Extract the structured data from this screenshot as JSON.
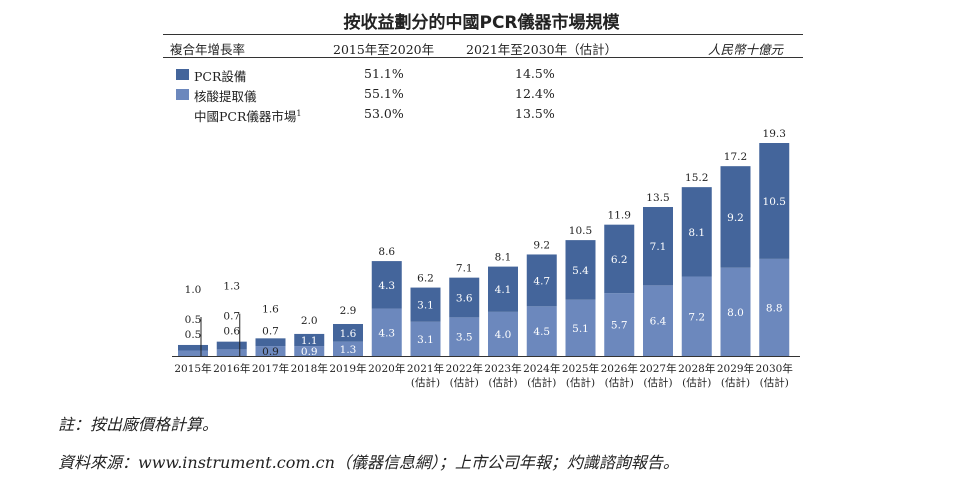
{
  "title": "按收益劃分的中國PCR儀器市場規模",
  "header": {
    "cagr_label": "複合年增長率",
    "period1": "2015年至2020年",
    "period2": "2021年至2030年（估計）",
    "unit": "人民幣十億元"
  },
  "legend": [
    {
      "label": "PCR設備",
      "color": "#44659b",
      "cagr1": "51.1%",
      "cagr2": "14.5%"
    },
    {
      "label": "核酸提取儀",
      "color": "#6c88bd",
      "cagr1": "55.1%",
      "cagr2": "12.4%"
    }
  ],
  "market_row": {
    "label": "中國PCR儀器市場",
    "sup": "1",
    "cagr1": "53.0%",
    "cagr2": "13.5%"
  },
  "chart_data": {
    "type": "bar",
    "stacked": true,
    "categories": [
      "2015年",
      "2016年",
      "2017年",
      "2018年",
      "2019年",
      "2020年",
      "2021年",
      "2022年",
      "2023年",
      "2024年",
      "2025年",
      "2026年",
      "2027年",
      "2028年",
      "2029年",
      "2030年"
    ],
    "category_sublabels": [
      "",
      "",
      "",
      "",
      "",
      "",
      "(估計)",
      "(估計)",
      "(估計)",
      "(估計)",
      "(估計)",
      "(估計)",
      "(估計)",
      "(估計)",
      "(估計)",
      "(估計)"
    ],
    "series": [
      {
        "name": "核酸提取儀",
        "color": "#6c88bd",
        "values": [
          0.5,
          0.6,
          0.9,
          0.9,
          1.3,
          4.3,
          3.1,
          3.5,
          4.0,
          4.5,
          5.1,
          5.7,
          6.4,
          7.2,
          8.0,
          8.8
        ]
      },
      {
        "name": "PCR設備",
        "color": "#44659b",
        "values": [
          0.5,
          0.7,
          0.7,
          1.1,
          1.6,
          4.3,
          3.1,
          3.6,
          4.1,
          4.7,
          5.4,
          6.2,
          7.1,
          8.1,
          9.2,
          10.5
        ]
      }
    ],
    "totals": [
      1.0,
      1.3,
      1.6,
      2.0,
      2.9,
      8.6,
      6.2,
      7.1,
      8.1,
      9.2,
      10.5,
      11.9,
      13.5,
      15.2,
      17.2,
      19.3
    ],
    "ylim": [
      0,
      19.3
    ]
  },
  "notes": {
    "note": "註：按出廠價格計算。",
    "source": "資料來源：www.instrument.com.cn（儀器信息網）；上市公司年報；灼識諮詢報告。"
  }
}
